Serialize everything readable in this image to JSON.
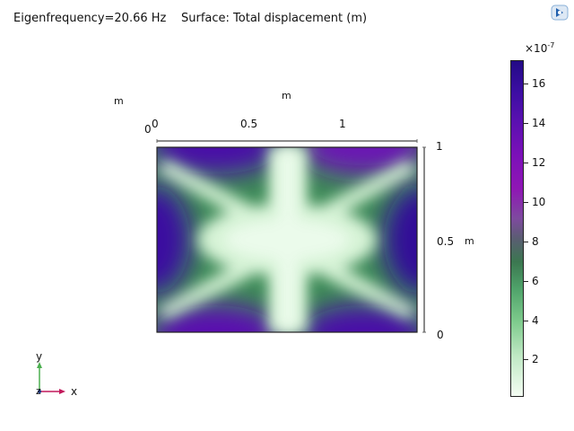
{
  "header": {
    "eigenfrequency": "Eigenfrequency=20.66 Hz",
    "surface": "Surface: Total displacement (m)"
  },
  "axes": {
    "unit_top": "m",
    "unit_left": "m",
    "unit_right": "m",
    "origin_label": "0",
    "x_ticks": [
      "0",
      "0.5",
      "1"
    ],
    "y_ticks": [
      "1",
      "0.5",
      "0"
    ]
  },
  "colorbar": {
    "exponent_base": "×10",
    "exponent_power": "-7",
    "ticks": [
      "16",
      "14",
      "12",
      "10",
      "8",
      "6",
      "4",
      "2"
    ],
    "colors": {
      "low": "#f4fdf3",
      "mid": "#3b7750",
      "high": "#230a86"
    }
  },
  "triad": {
    "x_label": "x",
    "y_label": "y",
    "z_label": "z"
  },
  "icons": {
    "logo": "comsol-logo-icon"
  }
}
